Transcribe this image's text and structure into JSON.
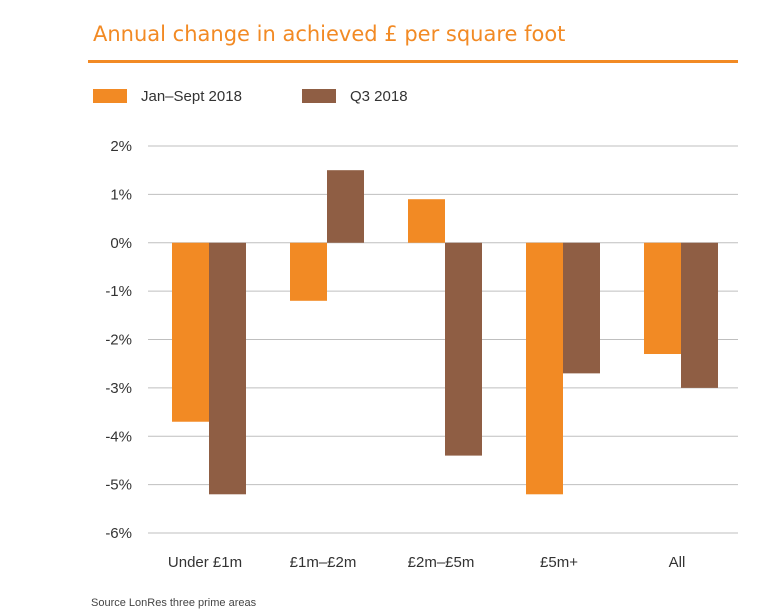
{
  "colors": {
    "accent": "#F28A24",
    "series1": "#F28A24",
    "series2": "#8F5E44",
    "grid": "#BFBFBF",
    "text": "#333333"
  },
  "chart_data": {
    "type": "bar",
    "title": "Annual change in achieved £ per square foot",
    "categories": [
      "Under £1m",
      "£1m–£2m",
      "£2m–£5m",
      "£5m+",
      "All"
    ],
    "series": [
      {
        "name": "Jan–Sept 2018",
        "values": [
          -3.7,
          -1.2,
          0.9,
          -5.2,
          -2.3
        ]
      },
      {
        "name": "Q3 2018",
        "values": [
          -5.2,
          1.5,
          -4.4,
          -2.7,
          -3.0
        ]
      }
    ],
    "ylim": [
      -6,
      2
    ],
    "yticks": [
      2,
      1,
      0,
      -1,
      -2,
      -3,
      -4,
      -5,
      -6
    ],
    "ytick_labels": [
      "2%",
      "1%",
      "0%",
      "-1%",
      "-2%",
      "-3%",
      "-4%",
      "-5%",
      "-6%"
    ],
    "xlabel": "",
    "ylabel": "",
    "grid": true,
    "legend_position": "top-left"
  },
  "footer": {
    "source": "Source LonRes three prime areas"
  }
}
